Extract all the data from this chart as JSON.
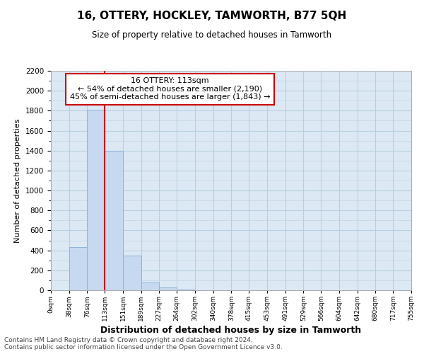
{
  "title": "16, OTTERY, HOCKLEY, TAMWORTH, B77 5QH",
  "subtitle": "Size of property relative to detached houses in Tamworth",
  "xlabel": "Distribution of detached houses by size in Tamworth",
  "ylabel": "Number of detached properties",
  "bar_edges": [
    0,
    38,
    76,
    113,
    151,
    189,
    227,
    264,
    302,
    340,
    378,
    415,
    453,
    491,
    529,
    566,
    604,
    642,
    680,
    717,
    755
  ],
  "bar_heights": [
    0,
    430,
    1810,
    1400,
    350,
    80,
    30,
    5,
    0,
    0,
    0,
    0,
    0,
    0,
    0,
    0,
    0,
    0,
    0,
    0
  ],
  "bar_color": "#c6d9f0",
  "bar_edgecolor": "#8cb4d8",
  "red_line_x": 113,
  "annotation_title": "16 OTTERY: 113sqm",
  "annotation_line1": "← 54% of detached houses are smaller (2,190)",
  "annotation_line2": "45% of semi-detached houses are larger (1,843) →",
  "annotation_box_color": "#ffffff",
  "annotation_box_edgecolor": "#cc0000",
  "red_line_color": "#cc0000",
  "ylim": [
    0,
    2200
  ],
  "yticks": [
    0,
    200,
    400,
    600,
    800,
    1000,
    1200,
    1400,
    1600,
    1800,
    2000,
    2200
  ],
  "axes_facecolor": "#dce9f5",
  "background_color": "#ffffff",
  "grid_color": "#b8cfe0",
  "footer_line1": "Contains HM Land Registry data © Crown copyright and database right 2024.",
  "footer_line2": "Contains public sector information licensed under the Open Government Licence v3.0."
}
